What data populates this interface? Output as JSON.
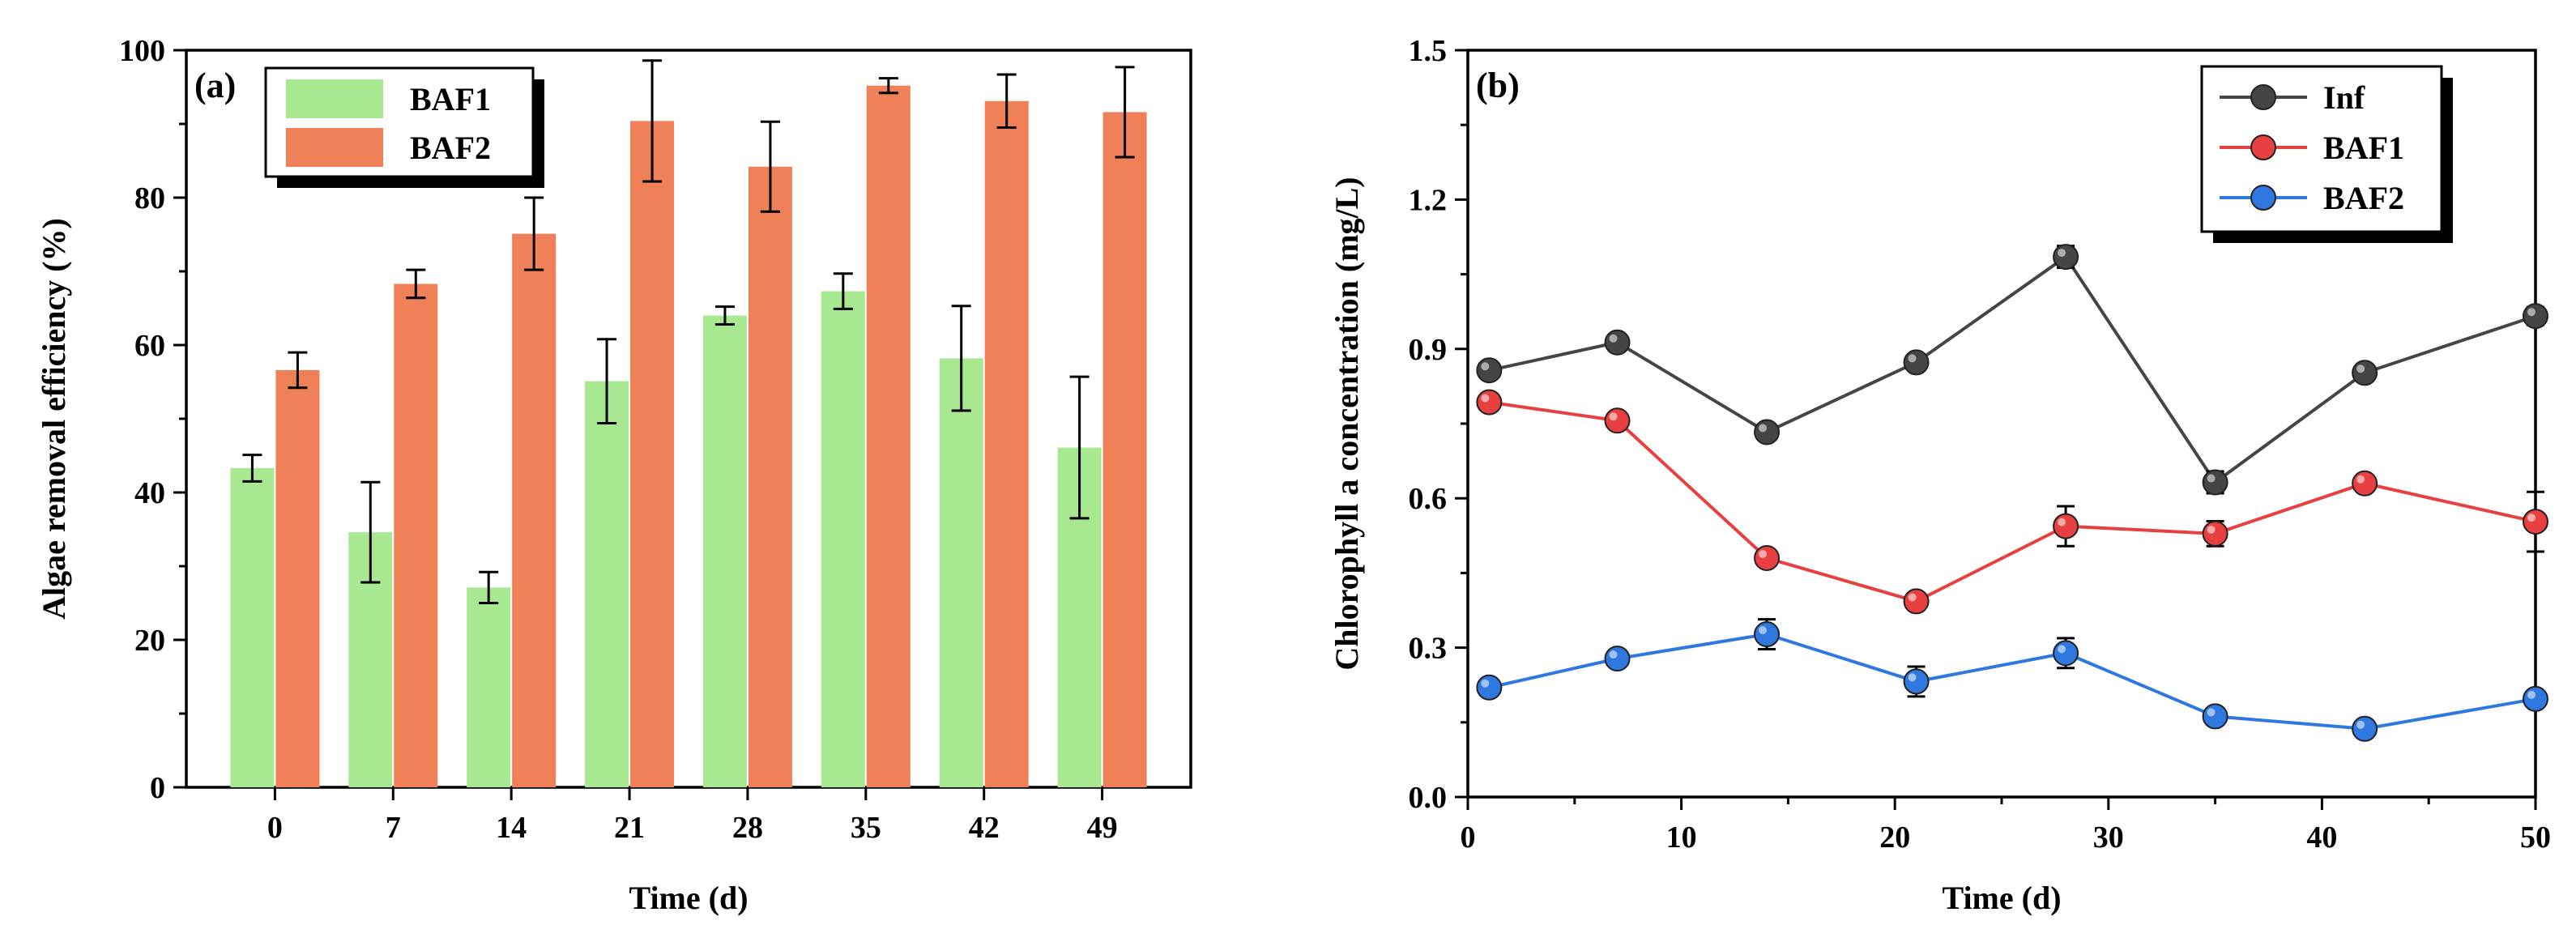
{
  "chart_data": [
    {
      "type": "bar",
      "panel_label": "(a)",
      "title": "",
      "xlabel": "Time (d)",
      "ylabel": "Algae removal efficiency (%)",
      "ylim": [
        0,
        100
      ],
      "yticks": [
        0,
        20,
        40,
        60,
        80,
        100
      ],
      "categories": [
        "0",
        "7",
        "14",
        "21",
        "28",
        "35",
        "42",
        "49"
      ],
      "series": [
        {
          "name": "BAF1",
          "color": "#a8e890",
          "values": [
            43.3,
            34.6,
            27.1,
            55.1,
            64.0,
            67.3,
            58.2,
            46.1
          ],
          "errors": [
            1.8,
            6.8,
            2.1,
            5.7,
            1.2,
            2.4,
            7.1,
            9.6
          ]
        },
        {
          "name": "BAF2",
          "color": "#f08058",
          "values": [
            56.6,
            68.3,
            75.1,
            90.4,
            84.2,
            95.2,
            93.1,
            91.6
          ],
          "errors": [
            2.4,
            1.9,
            4.9,
            8.2,
            6.1,
            1.0,
            3.6,
            6.1
          ]
        }
      ],
      "legend": "top-left"
    },
    {
      "type": "line",
      "panel_label": "(b)",
      "title": "",
      "xlabel": "Time (d)",
      "ylabel": "Chlorophyll a concentration (mg/L)",
      "xlim": [
        0,
        50
      ],
      "ylim": [
        0,
        1.5
      ],
      "xticks": [
        0,
        10,
        20,
        30,
        40,
        50
      ],
      "yticks": [
        "0.0",
        "0.3",
        "0.6",
        "0.9",
        "1.2",
        "1.5"
      ],
      "x": [
        1,
        7,
        14,
        21,
        28,
        35,
        42,
        50
      ],
      "series": [
        {
          "name": "Inf",
          "color": "#454545",
          "values": [
            0.857,
            0.913,
            0.733,
            0.873,
            1.085,
            0.632,
            0.852,
            0.966
          ],
          "errors": [
            0.01,
            0.012,
            0.012,
            0.012,
            0.022,
            0.022,
            0.012,
            0.018
          ]
        },
        {
          "name": "BAF1",
          "color": "#e84040",
          "values": [
            0.793,
            0.756,
            0.48,
            0.393,
            0.544,
            0.529,
            0.63,
            0.553
          ],
          "errors": [
            0.01,
            0.01,
            0.01,
            0.01,
            0.04,
            0.025,
            0.01,
            0.06
          ]
        },
        {
          "name": "BAF2",
          "color": "#2e78e0",
          "values": [
            0.22,
            0.278,
            0.327,
            0.232,
            0.289,
            0.162,
            0.137,
            0.197
          ],
          "errors": [
            0.01,
            0.01,
            0.03,
            0.03,
            0.03,
            0.01,
            0.01,
            0.01
          ]
        }
      ],
      "legend": "top-right"
    }
  ]
}
